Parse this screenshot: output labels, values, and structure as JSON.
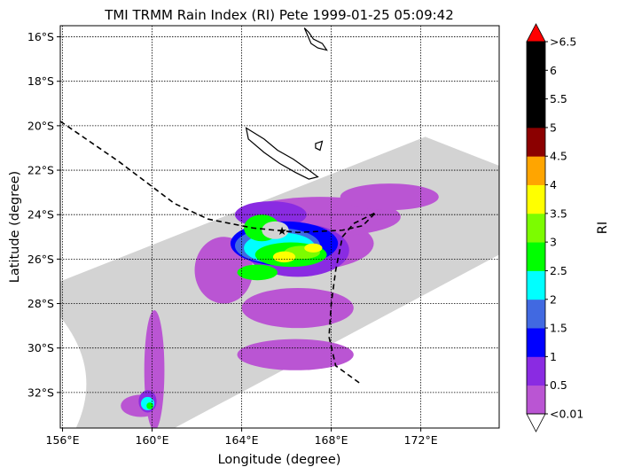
{
  "chart_data": {
    "type": "heatmap",
    "title": "TMI TRMM Rain Index (RI) Pete 1999-01-25 05:09:42",
    "xlabel": "Longitude (degree)",
    "ylabel": "Latitude (degree)",
    "xlim": [
      155.9,
      175.5
    ],
    "ylim": [
      -33.6,
      -15.5
    ],
    "x_ticks": [
      {
        "value": 156,
        "label": "156°E"
      },
      {
        "value": 160,
        "label": "160°E"
      },
      {
        "value": 164,
        "label": "164°E"
      },
      {
        "value": 168,
        "label": "168°E"
      },
      {
        "value": 172,
        "label": "172°E"
      }
    ],
    "y_ticks": [
      {
        "value": -16,
        "label": "16°S"
      },
      {
        "value": -18,
        "label": "18°S"
      },
      {
        "value": -20,
        "label": "20°S"
      },
      {
        "value": -22,
        "label": "22°S"
      },
      {
        "value": -24,
        "label": "24°S"
      },
      {
        "value": -26,
        "label": "26°S"
      },
      {
        "value": -28,
        "label": "28°S"
      },
      {
        "value": -30,
        "label": "30°S"
      },
      {
        "value": -32,
        "label": "32°S"
      }
    ],
    "grid": true,
    "swath_color": "#d3d3d3",
    "colorbar": {
      "label": "RI",
      "under_label": "<0.01",
      "over_label": ">6.5",
      "under_color": "#ffffff",
      "over_color": "#ff0000",
      "boundaries": [
        0.01,
        0.5,
        1,
        1.5,
        2,
        2.5,
        3,
        3.5,
        4,
        4.5,
        5,
        5.5,
        6,
        6.5
      ],
      "tick_labels": [
        "<0.01",
        "0.5",
        "1",
        "1.5",
        "2",
        "2.5",
        "3",
        "3.5",
        "4",
        "4.5",
        "5",
        "5.5",
        "6",
        ">6.5"
      ],
      "colors": [
        "#ba55d3",
        "#8a2be2",
        "#0000ff",
        "#4169e1",
        "#00ffff",
        "#00ff00",
        "#7cfc00",
        "#ffff00",
        "#ffa500",
        "#8b0000",
        "#000000",
        "#000000",
        "#000000"
      ]
    },
    "storm_center": {
      "lon": 165.8,
      "lat": -24.7,
      "color": "#ff0000"
    },
    "track": [
      [
        155.9,
        -19.8
      ],
      [
        158.5,
        -21.6
      ],
      [
        161.0,
        -23.5
      ],
      [
        162.5,
        -24.2
      ],
      [
        164.5,
        -24.6
      ],
      [
        166.5,
        -24.8
      ],
      [
        168.5,
        -24.7
      ],
      [
        169.4,
        -24.5
      ],
      [
        170.0,
        -23.9
      ],
      [
        169.0,
        -24.4
      ],
      [
        168.5,
        -25.0
      ],
      [
        168.2,
        -26.5
      ],
      [
        168.0,
        -28.0
      ],
      [
        167.9,
        -29.5
      ],
      [
        168.2,
        -30.8
      ],
      [
        169.3,
        -31.6
      ]
    ],
    "coastlines": [
      [
        [
          164.2,
          -20.1
        ],
        [
          165.0,
          -20.6
        ],
        [
          165.6,
          -21.1
        ],
        [
          166.3,
          -21.5
        ],
        [
          167.0,
          -22.0
        ],
        [
          167.4,
          -22.3
        ],
        [
          167.0,
          -22.4
        ],
        [
          166.4,
          -22.1
        ],
        [
          165.7,
          -21.7
        ],
        [
          165.0,
          -21.2
        ],
        [
          164.3,
          -20.6
        ],
        [
          164.2,
          -20.1
        ]
      ],
      [
        [
          167.3,
          -20.8
        ],
        [
          167.6,
          -20.7
        ],
        [
          167.5,
          -21.1
        ],
        [
          167.3,
          -21.0
        ],
        [
          167.3,
          -20.8
        ]
      ],
      [
        [
          166.8,
          -15.6
        ],
        [
          167.0,
          -15.8
        ],
        [
          167.2,
          -16.1
        ],
        [
          167.6,
          -16.3
        ],
        [
          167.8,
          -16.6
        ],
        [
          167.4,
          -16.5
        ],
        [
          167.1,
          -16.3
        ],
        [
          166.8,
          -15.6
        ]
      ]
    ],
    "rain_cells": [
      {
        "lon": 166.8,
        "lat": -25.3,
        "rx": 3.1,
        "ry": 1.2,
        "ri": 0.3
      },
      {
        "lon": 167.5,
        "lat": -24.1,
        "rx": 3.6,
        "ry": 0.9,
        "ri": 0.3
      },
      {
        "lon": 170.6,
        "lat": -23.2,
        "rx": 2.2,
        "ry": 0.6,
        "ri": 0.3
      },
      {
        "lon": 166.5,
        "lat": -28.2,
        "rx": 2.5,
        "ry": 0.9,
        "ri": 0.2
      },
      {
        "lon": 166.4,
        "lat": -30.3,
        "rx": 2.6,
        "ry": 0.7,
        "ri": 0.2
      },
      {
        "lon": 163.2,
        "lat": -26.5,
        "rx": 1.3,
        "ry": 1.5,
        "ri": 0.2
      },
      {
        "lon": 160.1,
        "lat": -31.0,
        "rx": 0.45,
        "ry": 2.7,
        "ri": 0.3
      },
      {
        "lon": 159.5,
        "lat": -32.6,
        "rx": 0.9,
        "ry": 0.5,
        "ri": 0.3
      },
      {
        "lon": 166.5,
        "lat": -25.6,
        "rx": 2.3,
        "ry": 1.2,
        "ri": 0.8
      },
      {
        "lon": 165.3,
        "lat": -24.0,
        "rx": 1.6,
        "ry": 0.6,
        "ri": 0.8
      },
      {
        "lon": 165.9,
        "lat": -25.3,
        "rx": 2.4,
        "ry": 1.0,
        "ri": 1.2
      },
      {
        "lon": 165.6,
        "lat": -25.4,
        "rx": 1.9,
        "ry": 0.8,
        "ri": 1.8
      },
      {
        "lon": 165.7,
        "lat": -25.5,
        "rx": 1.6,
        "ry": 0.7,
        "ri": 2.2
      },
      {
        "lon": 166.2,
        "lat": -25.8,
        "rx": 1.6,
        "ry": 0.55,
        "ri": 2.8
      },
      {
        "lon": 164.9,
        "lat": -24.6,
        "rx": 0.8,
        "ry": 0.6,
        "ri": 2.8
      },
      {
        "lon": 164.7,
        "lat": -26.6,
        "rx": 0.9,
        "ry": 0.35,
        "ri": 2.8
      },
      {
        "lon": 166.7,
        "lat": -25.7,
        "rx": 0.8,
        "ry": 0.3,
        "ri": 3.2
      },
      {
        "lon": 165.9,
        "lat": -25.9,
        "rx": 0.5,
        "ry": 0.25,
        "ri": 3.7
      },
      {
        "lon": 167.2,
        "lat": -25.5,
        "rx": 0.4,
        "ry": 0.2,
        "ri": 3.7
      },
      {
        "lon": 165.5,
        "lat": -24.7,
        "rx": 0.6,
        "ry": 0.4,
        "ri": 0.005
      },
      {
        "lon": 159.8,
        "lat": -32.4,
        "rx": 0.4,
        "ry": 0.5,
        "ri": 0.8
      },
      {
        "lon": 159.8,
        "lat": -32.5,
        "rx": 0.3,
        "ry": 0.3,
        "ri": 2.2
      },
      {
        "lon": 159.9,
        "lat": -32.6,
        "rx": 0.15,
        "ry": 0.15,
        "ri": 2.8
      }
    ]
  }
}
